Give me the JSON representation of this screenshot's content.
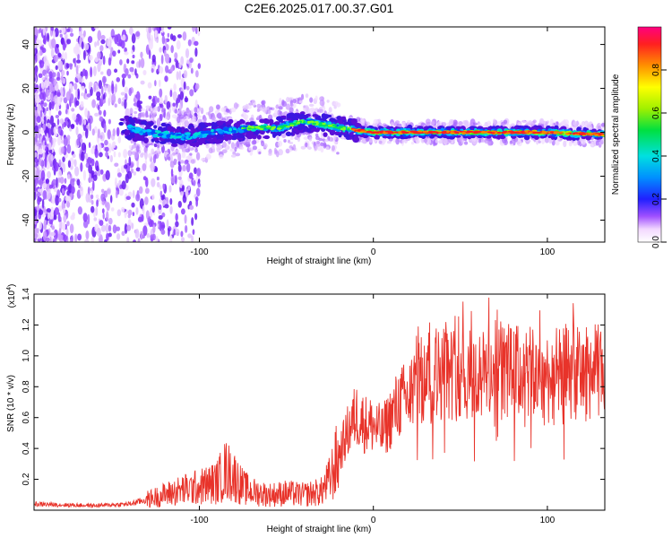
{
  "title": "C2E6.2025.017.00.37.G01",
  "chart_data": [
    {
      "type": "heatmap",
      "xlabel": "Height of straight line (km)",
      "ylabel": "Frequency (Hz)",
      "xlim": [
        -195,
        133
      ],
      "ylim": [
        -50,
        48
      ],
      "x_ticks": [
        -100,
        0,
        100
      ],
      "y_ticks": [
        -40,
        -20,
        0,
        20,
        40
      ],
      "colorbar": {
        "label": "Normalized spectral amplitude",
        "range": [
          0,
          1
        ],
        "ticks": [
          0.0,
          0.2,
          0.4,
          0.6,
          0.8
        ],
        "colormap": "rainbow"
      },
      "ridge": [
        {
          "x": -190,
          "y": 5
        },
        {
          "x": -170,
          "y": 4
        },
        {
          "x": -145,
          "y": 3
        },
        {
          "x": -130,
          "y": 0
        },
        {
          "x": -110,
          "y": -2
        },
        {
          "x": -90,
          "y": 0
        },
        {
          "x": -70,
          "y": 2
        },
        {
          "x": -55,
          "y": 2
        },
        {
          "x": -40,
          "y": 5
        },
        {
          "x": -25,
          "y": 3
        },
        {
          "x": -10,
          "y": 1
        },
        {
          "x": 0,
          "y": 0
        },
        {
          "x": 30,
          "y": 0
        },
        {
          "x": 60,
          "y": 0
        },
        {
          "x": 100,
          "y": 0
        },
        {
          "x": 133,
          "y": -1
        }
      ]
    },
    {
      "type": "line",
      "xlabel": "Height of straight line (km)",
      "ylabel": "SNR (10 * v/v)",
      "y_multiplier": "(x10",
      "y_multiplier_exp": "4",
      "xlim": [
        -195,
        133
      ],
      "ylim": [
        0,
        14000
      ],
      "x_ticks": [
        -100,
        0,
        100
      ],
      "y_ticks": [
        0.2,
        0.4,
        0.6,
        0.8,
        1.0,
        1.2,
        1.4
      ],
      "line_color": "#e8332a",
      "series": [
        {
          "x": [
            -195,
            -180,
            -160,
            -140,
            -130,
            -120,
            -110,
            -100,
            -90,
            -85,
            -80,
            -75,
            -70,
            -60,
            -50,
            -40,
            -30,
            -25,
            -20,
            -15,
            -10,
            -5,
            0,
            5,
            10,
            15,
            20,
            25,
            30,
            40,
            50,
            60,
            70,
            80,
            90,
            100,
            110,
            120,
            130,
            133
          ],
          "values": [
            400,
            350,
            300,
            400,
            700,
            1000,
            1300,
            1500,
            1800,
            2600,
            2200,
            1500,
            1200,
            1000,
            1100,
            1000,
            1200,
            2000,
            3500,
            5000,
            6200,
            5600,
            5500,
            5000,
            6000,
            7000,
            7200,
            8500,
            8200,
            9000,
            8800,
            8500,
            9200,
            9000,
            8800,
            8600,
            9000,
            8800,
            9000,
            9200
          ]
        }
      ]
    }
  ]
}
